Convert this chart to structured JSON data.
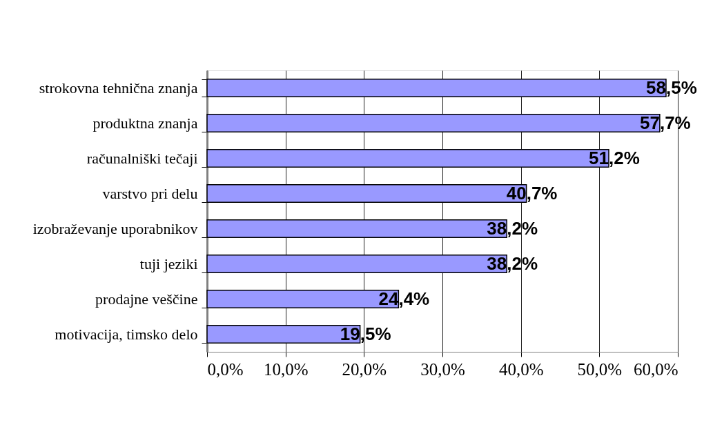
{
  "chart_data": {
    "type": "bar",
    "orientation": "horizontal",
    "categories": [
      "strokovna tehnična znanja",
      "produktna znanja",
      "računalniški tečaji",
      "varstvo pri delu",
      "izobraževanje uporabnikov",
      "tuji jeziki",
      "prodajne veščine",
      "motivacija, timsko delo"
    ],
    "values": [
      58.5,
      57.7,
      51.2,
      40.7,
      38.2,
      38.2,
      24.4,
      19.5
    ],
    "color": "#9999ff",
    "value_labels": [
      "58,5%",
      "57,7%",
      "51,2%",
      "40,7%",
      "38,2%",
      "38,2%",
      "24,4%",
      "19,5%"
    ],
    "xlim": [
      0,
      60
    ],
    "xticks": [
      {
        "value": 0,
        "label": "0,0%"
      },
      {
        "value": 10,
        "label": "10,0%"
      },
      {
        "value": 20,
        "label": "20,0%"
      },
      {
        "value": 30,
        "label": "30,0%"
      },
      {
        "value": 40,
        "label": "40,0%"
      },
      {
        "value": 50,
        "label": "50,0%"
      },
      {
        "value": 60,
        "label": "60,0%"
      }
    ],
    "grid": "x"
  }
}
